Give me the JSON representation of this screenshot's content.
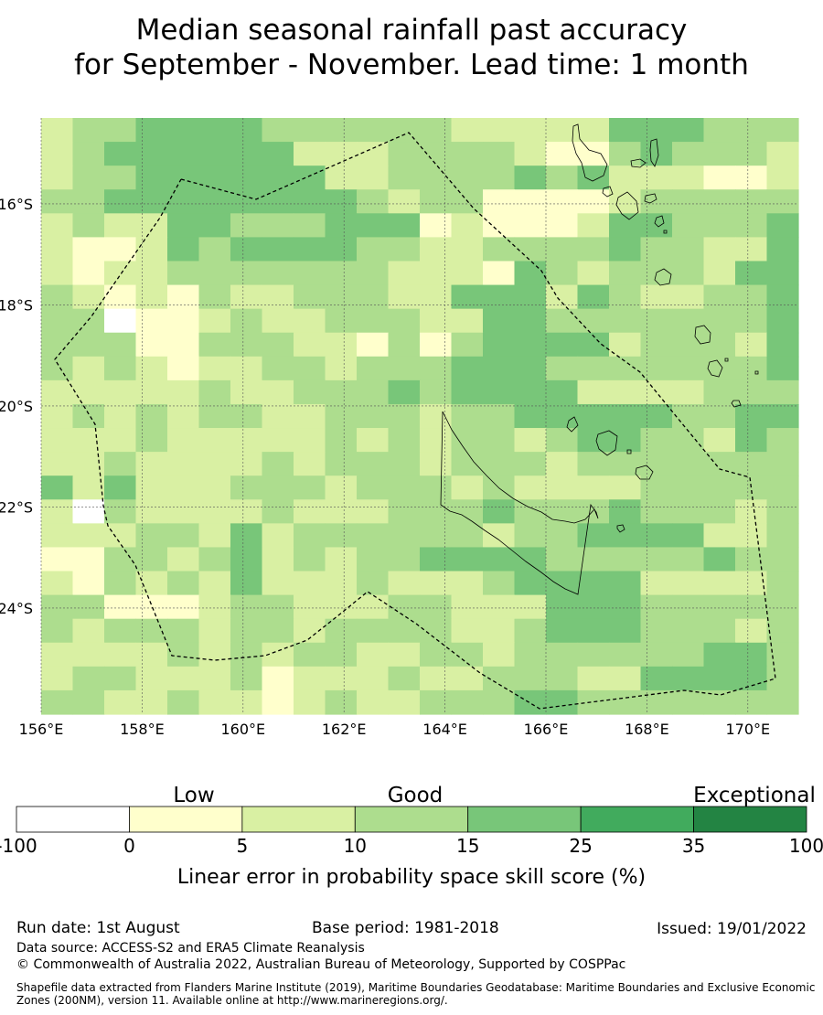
{
  "title": {
    "line1": "Median seasonal rainfall past accuracy",
    "line2": "for September - November. Lead time: 1 month"
  },
  "map": {
    "lon_labels": [
      "156°E",
      "158°E",
      "160°E",
      "162°E",
      "164°E",
      "166°E",
      "168°E",
      "170°E"
    ],
    "lat_labels": [
      "16°S",
      "18°S",
      "20°S",
      "22°S",
      "24°S"
    ],
    "lon_range": [
      156,
      171
    ],
    "lat_range": [
      -14.3,
      -26.1
    ],
    "grid": true,
    "eez_boundary_style": "dashed",
    "coastlines": "New Caledonia, Loyalty Islands, southern Vanuatu"
  },
  "colorbar": {
    "category_labels": [
      "Low",
      "Good",
      "Exceptional"
    ],
    "tick_labels": [
      "-100",
      "0",
      "5",
      "10",
      "15",
      "25",
      "35",
      "100"
    ],
    "colors": [
      "#ffffff",
      "#ffffcc",
      "#d9f0a3",
      "#addd8e",
      "#78c679",
      "#41ab5d",
      "#238443"
    ],
    "xlabel": "Linear error in probability space skill score (%)"
  },
  "chart_data": {
    "type": "heatmap",
    "title": "Median seasonal rainfall past accuracy for September - November. Lead time: 1 month",
    "x_range": [
      156,
      171
    ],
    "y_range": [
      -14.3,
      -26.1
    ],
    "cell_size_deg": [
      0.833,
      0.556
    ],
    "levels": [
      -100,
      0,
      5,
      10,
      15,
      25,
      35,
      100
    ],
    "rows": [
      "233444433333322222444333",
      "234444442223333211343332",
      "233444444223333434222112",
      "334444444432331111233333",
      "232244333444121112443334",
      "211243444433223333433224",
      "212233333332221432333244",
      "321213223332244424322334",
      "330112322333224433333334",
      "333113332213134444233324",
      "323212233233344433333334",
      "222223223334344442222333",
      "232323322333233444443344",
      "222322222323233234433243",
      "223222232333233323333333",
      "424222333233323222233333",
      "203222232223334333433323",
      "222332423333332334444223",
      "113323423233444433333433",
      "213232422232223444422223",
      "331112332223322244433333",
      "323332332333322344433323",
      "222232323322332333333443",
      "233222312223223332244443",
      "332232212322333443333333"
    ]
  },
  "footer": {
    "run_date": "Run date: 1st August",
    "base_period": "Base period: 1981-2018",
    "issued": "Issued: 19/01/2022",
    "data_source": "Data source: ACCESS-S2 and ERA5 Climate Reanalysis",
    "copyright": "© Commonwealth of Australia 2022, Australian Bureau of Meteorology, Supported by COSPPac",
    "shapefile_line1": "Shapefile data extracted from Flanders Marine Institute (2019), Maritime Boundaries Geodatabase: Maritime Boundaries and Exclusive Economic",
    "shapefile_line2": "Zones (200NM), version 11. Available online at http://www.marineregions.org/."
  }
}
